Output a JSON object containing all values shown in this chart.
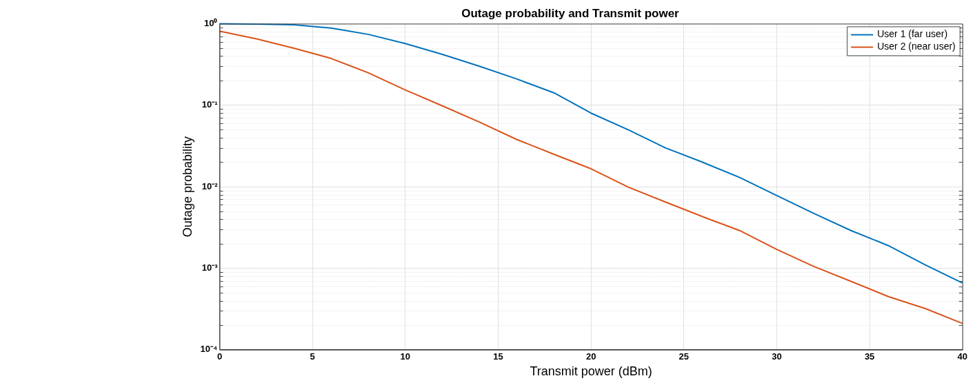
{
  "chart_data": {
    "type": "line",
    "title": "Outage probability and Transmit power",
    "xlabel": "Transmit power (dBm)",
    "ylabel": "Outage probability",
    "x": [
      0,
      2,
      4,
      6,
      8,
      10,
      12,
      14,
      16,
      18,
      20,
      22,
      24,
      26,
      28,
      30,
      32,
      34,
      36,
      38,
      40
    ],
    "series": [
      {
        "name": "User 1 (far user)",
        "color": "#0072bd",
        "values": [
          1.0,
          0.99,
          0.97,
          0.885,
          0.74,
          0.57,
          0.42,
          0.3,
          0.21,
          0.142,
          0.08,
          0.05,
          0.03,
          0.02,
          0.013,
          0.0078,
          0.0047,
          0.0029,
          0.0019,
          0.0011,
          0.00066
        ]
      },
      {
        "name": "User 2 (near user)",
        "color": "#d95319",
        "values": [
          0.81,
          0.65,
          0.5,
          0.375,
          0.25,
          0.154,
          0.098,
          0.062,
          0.038,
          0.025,
          0.0166,
          0.0099,
          0.0065,
          0.0043,
          0.0029,
          0.0017,
          0.00105,
          0.00069,
          0.00045,
          0.00032,
          0.00021
        ]
      }
    ],
    "xlim": [
      0,
      40
    ],
    "xticks": [
      0,
      5,
      10,
      15,
      20,
      25,
      30,
      35,
      40
    ],
    "ylim": [
      0.0001,
      1
    ],
    "yticks": [
      {
        "value": 0.0001,
        "label": "10⁻⁴"
      },
      {
        "value": 0.001,
        "label": "10⁻³"
      },
      {
        "value": 0.01,
        "label": "10⁻²"
      },
      {
        "value": 0.1,
        "label": "10⁻¹"
      },
      {
        "value": 1,
        "label": "10⁰"
      }
    ],
    "log": "y",
    "grid": true,
    "legend": "top right",
    "marker": "none",
    "line_style": "solid"
  }
}
